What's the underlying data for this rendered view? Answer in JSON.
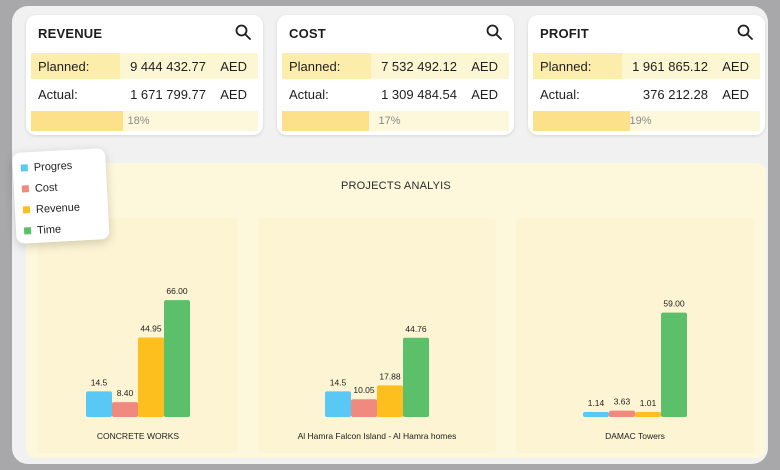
{
  "colors": {
    "progress": "#5ac8f5",
    "cost": "#f08a7e",
    "revenue": "#fcbf1e",
    "time": "#5cbf69"
  },
  "cards": [
    {
      "title": "REVENUE",
      "planned_label": "Planned:",
      "planned_value": "9 444 432.77",
      "currency": "AED",
      "actual_label": "Actual:",
      "actual_value": "1 671 799.77",
      "percent_text": "18%",
      "percent": 18
    },
    {
      "title": "COST",
      "planned_label": "Planned:",
      "planned_value": "7 532 492.12",
      "currency": "AED",
      "actual_label": "Actual:",
      "actual_value": "1 309 484.54",
      "percent_text": "17%",
      "percent": 17
    },
    {
      "title": "PROFIT",
      "planned_label": "Planned:",
      "planned_value": "1 961 865.12",
      "currency": "AED",
      "actual_label": "Actual:",
      "actual_value": "376 212.28",
      "percent_text": "19%",
      "percent": 19
    }
  ],
  "analysis_title": "PROJECTS ANALYIS",
  "legend": [
    "Progres",
    "Cost",
    "Revenue",
    "Time"
  ],
  "chart_data": [
    {
      "type": "bar",
      "title": "CONCRETE WORKS",
      "categories": [
        "Progres",
        "Cost",
        "Revenue",
        "Time"
      ],
      "values": [
        14.5,
        8.4,
        44.95,
        66.0
      ],
      "labels": [
        "14.5",
        "8.40",
        "44.95",
        "66.00"
      ]
    },
    {
      "type": "bar",
      "title": "Al Hamra Falcon Island - Al Hamra homes",
      "categories": [
        "Progres",
        "Cost",
        "Revenue",
        "Time"
      ],
      "values": [
        14.5,
        10.05,
        17.88,
        44.76
      ],
      "labels": [
        "14.5",
        "10.05",
        "17.88",
        "44.76"
      ]
    },
    {
      "type": "bar",
      "title": "DAMAC Towers",
      "categories": [
        "Progres",
        "Cost",
        "Revenue",
        "Time"
      ],
      "values": [
        1.14,
        3.63,
        1.01,
        59.0
      ],
      "labels": [
        "1.14",
        "3.63",
        "1.01",
        "59.00"
      ]
    }
  ]
}
